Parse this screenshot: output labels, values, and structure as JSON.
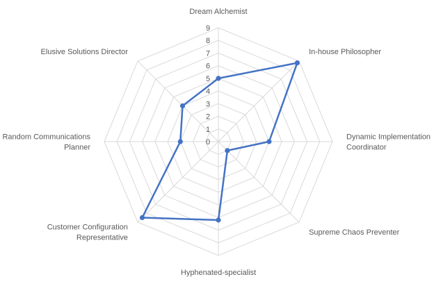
{
  "chart_data": {
    "type": "radar",
    "title": "",
    "categories": [
      "Dream Alchemist",
      "In-house Philosopher",
      "Dynamic Implementation Coordinator",
      "Supreme Chaos Preventer",
      "Hyphenated-specialist",
      "Customer Configuration Representative",
      "Random Communications Planner",
      "Elusive Solutions Director"
    ],
    "category_lines": [
      [
        "Dream Alchemist"
      ],
      [
        "In-house Philosopher"
      ],
      [
        "Dynamic Implementation",
        "Coordinator"
      ],
      [
        "Supreme Chaos Preventer"
      ],
      [
        "Hyphenated-specialist"
      ],
      [
        "Customer Configuration",
        "Representative"
      ],
      [
        "Random Communications",
        "Planner"
      ],
      [
        "Elusive Solutions Director"
      ]
    ],
    "series": [
      {
        "values": [
          5,
          8.8,
          4,
          1,
          6.2,
          8.5,
          3,
          4
        ]
      }
    ],
    "ticks": [
      "0",
      "1",
      "2",
      "3",
      "4",
      "5",
      "6",
      "7",
      "8",
      "9"
    ],
    "rlim": [
      0,
      9
    ],
    "grid": true,
    "legend": "none",
    "colors": {
      "series": "#4472C4",
      "grid": "#D9D9D9",
      "text": "#595959"
    }
  }
}
